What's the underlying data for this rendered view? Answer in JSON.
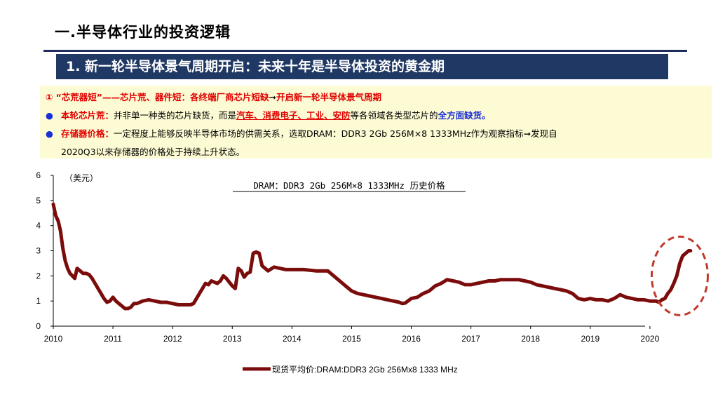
{
  "header": {
    "page_title": "一.半导体行业的投资逻辑",
    "section_title": "1. 新一轮半导体景气周期开启：未来十年是半导体投资的黄金期"
  },
  "notes": {
    "line1": {
      "num": "①",
      "quote": "“芯荒器短”——芯片荒、器件短：各终端厂商芯片短缺",
      "arrow": "➞",
      "tail": "开启新一轮半导体景气周期"
    },
    "line2": {
      "bullet": "●",
      "label": "本轮芯片荒：",
      "text1": "并非单一种类的芯片缺货，而是",
      "highlight": "汽车、消费电子、工业、安防",
      "text2": "等各领域各类型芯片的",
      "emph": "全方面缺货。"
    },
    "line3": {
      "bullet": "●",
      "label": "存储器价格：",
      "text1": "一定程度上能够反映半导体市场的供需关系，选取DRAM：DDR3 2Gb 256M×8 1333MHz作为观察指标",
      "arrow": "➞",
      "text2": "发现自",
      "cont": "2020Q3以来存储器的价格处于持续上升状态。"
    }
  },
  "chart_data": {
    "type": "line",
    "title": "DRAM：DDR3 2Gb 256M×8 1333MHz 历史价格",
    "ylabel": "（美元）",
    "xlabel": "",
    "xlim": [
      2010.0,
      2021.0
    ],
    "ylim": [
      0,
      6
    ],
    "yticks": [
      "0",
      "1",
      "2",
      "3",
      "4",
      "5",
      "6"
    ],
    "xticks": [
      "2010",
      "2011",
      "2012",
      "2013",
      "2014",
      "2015",
      "2016",
      "2017",
      "2018",
      "2019",
      "2020"
    ],
    "legend_label": "现货平均价:DRAM:DDR3 2Gb 256Mx8 1333 MHz",
    "line_color": "#7b0c0c",
    "highlight_color": "#c0392b",
    "annotation": "dashed-ellipse-around-2020Q3-rise",
    "series": [
      {
        "name": "现货平均价:DRAM:DDR3 2Gb 256Mx8 1333 MHz",
        "x": [
          2010.0,
          2010.04,
          2010.08,
          2010.12,
          2010.16,
          2010.2,
          2010.24,
          2010.28,
          2010.32,
          2010.36,
          2010.4,
          2010.45,
          2010.5,
          2010.55,
          2010.6,
          2010.65,
          2010.7,
          2010.75,
          2010.8,
          2010.85,
          2010.9,
          2010.95,
          2011.0,
          2011.05,
          2011.1,
          2011.15,
          2011.2,
          2011.25,
          2011.3,
          2011.35,
          2011.4,
          2011.45,
          2011.5,
          2011.6,
          2011.7,
          2011.8,
          2011.9,
          2012.0,
          2012.1,
          2012.2,
          2012.3,
          2012.35,
          2012.4,
          2012.45,
          2012.5,
          2012.55,
          2012.6,
          2012.65,
          2012.7,
          2012.75,
          2012.8,
          2012.85,
          2012.9,
          2012.95,
          2013.0,
          2013.05,
          2013.1,
          2013.15,
          2013.2,
          2013.25,
          2013.3,
          2013.35,
          2013.4,
          2013.45,
          2013.5,
          2013.55,
          2013.6,
          2013.7,
          2013.8,
          2013.9,
          2014.0,
          2014.2,
          2014.4,
          2014.6,
          2014.7,
          2014.8,
          2014.9,
          2015.0,
          2015.1,
          2015.2,
          2015.3,
          2015.4,
          2015.5,
          2015.6,
          2015.7,
          2015.8,
          2015.85,
          2015.9,
          2016.0,
          2016.1,
          2016.2,
          2016.3,
          2016.4,
          2016.5,
          2016.6,
          2016.7,
          2016.8,
          2016.9,
          2017.0,
          2017.1,
          2017.2,
          2017.3,
          2017.4,
          2017.5,
          2017.6,
          2017.7,
          2017.8,
          2017.9,
          2018.0,
          2018.1,
          2018.2,
          2018.3,
          2018.4,
          2018.5,
          2018.6,
          2018.7,
          2018.8,
          2018.9,
          2019.0,
          2019.1,
          2019.2,
          2019.3,
          2019.4,
          2019.5,
          2019.6,
          2019.7,
          2019.8,
          2019.9,
          2020.0,
          2020.1,
          2020.15,
          2020.2,
          2020.25,
          2020.3,
          2020.35,
          2020.4,
          2020.45,
          2020.5,
          2020.55,
          2020.6,
          2020.65,
          2020.68
        ],
        "y": [
          4.85,
          4.4,
          4.2,
          3.8,
          3.1,
          2.6,
          2.3,
          2.1,
          2.0,
          1.9,
          2.3,
          2.2,
          2.1,
          2.1,
          2.05,
          1.9,
          1.7,
          1.5,
          1.3,
          1.1,
          0.95,
          1.0,
          1.15,
          1.0,
          0.9,
          0.8,
          0.7,
          0.7,
          0.75,
          0.9,
          0.9,
          0.95,
          1.0,
          1.05,
          1.0,
          0.95,
          0.95,
          0.9,
          0.85,
          0.85,
          0.85,
          0.9,
          1.1,
          1.3,
          1.5,
          1.7,
          1.65,
          1.8,
          1.75,
          1.7,
          1.8,
          2.0,
          1.9,
          1.75,
          1.6,
          1.5,
          2.3,
          2.2,
          1.95,
          2.1,
          2.15,
          2.9,
          2.95,
          2.9,
          2.4,
          2.3,
          2.2,
          2.35,
          2.3,
          2.25,
          2.25,
          2.25,
          2.2,
          2.2,
          2.0,
          1.8,
          1.6,
          1.4,
          1.3,
          1.25,
          1.2,
          1.15,
          1.1,
          1.05,
          1.0,
          0.95,
          0.9,
          0.92,
          1.1,
          1.15,
          1.3,
          1.4,
          1.6,
          1.7,
          1.85,
          1.8,
          1.75,
          1.65,
          1.65,
          1.7,
          1.75,
          1.8,
          1.8,
          1.85,
          1.85,
          1.85,
          1.85,
          1.8,
          1.75,
          1.65,
          1.6,
          1.55,
          1.5,
          1.45,
          1.4,
          1.3,
          1.1,
          1.05,
          1.1,
          1.05,
          1.05,
          1.0,
          1.1,
          1.25,
          1.15,
          1.1,
          1.05,
          1.05,
          1.0,
          1.0,
          0.95,
          1.05,
          1.1,
          1.3,
          1.45,
          1.7,
          2.0,
          2.5,
          2.8,
          2.9,
          3.0,
          3.0
        ]
      }
    ]
  }
}
